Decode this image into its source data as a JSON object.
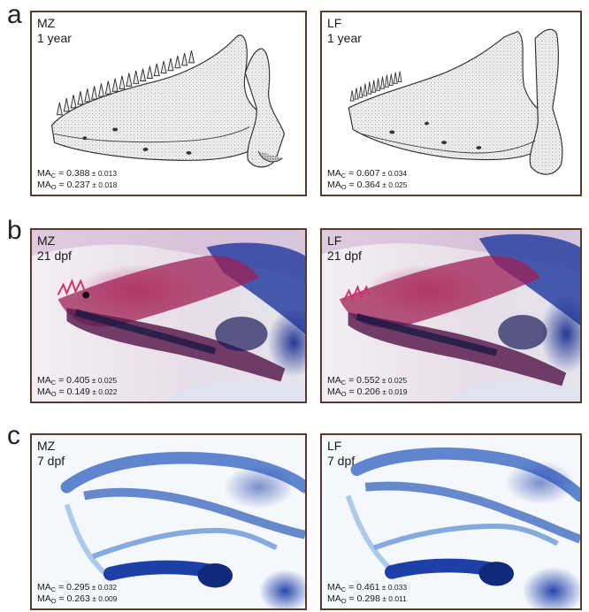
{
  "rows": [
    {
      "letter": "a",
      "panels": [
        {
          "line1": "MZ",
          "line2": "1 year",
          "mac": "0.388",
          "mac_sd": "0.013",
          "mao": "0.237",
          "mao_sd": "0.018"
        },
        {
          "line1": "LF",
          "line2": "1 year",
          "mac": "0.607",
          "mac_sd": "0.034",
          "mao": "0.364",
          "mao_sd": "0.025"
        }
      ]
    },
    {
      "letter": "b",
      "panels": [
        {
          "line1": "MZ",
          "line2": "21 dpf",
          "mac": "0.405",
          "mac_sd": "0.025",
          "mao": "0.149",
          "mao_sd": "0.022"
        },
        {
          "line1": "LF",
          "line2": "21 dpf",
          "mac": "0.552",
          "mac_sd": "0.025",
          "mao": "0.206",
          "mao_sd": "0.019"
        }
      ]
    },
    {
      "letter": "c",
      "panels": [
        {
          "line1": "MZ",
          "line2": "7 dpf",
          "mac": "0.295",
          "mac_sd": "0.032",
          "mao": "0.263",
          "mao_sd": "0.009"
        },
        {
          "line1": "LF",
          "line2": "7 dpf",
          "mac": "0.461",
          "mac_sd": "0.033",
          "mao": "0.298",
          "mao_sd": "0.011"
        }
      ]
    }
  ],
  "ma_prefix": "MA",
  "sub_c": "C",
  "sub_o": "O",
  "eq": " = ",
  "pm": " ± "
}
